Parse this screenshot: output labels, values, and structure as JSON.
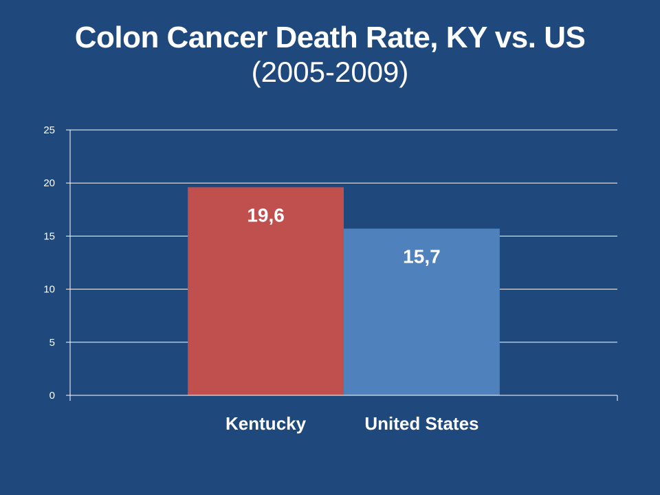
{
  "chart_data": {
    "type": "bar",
    "title": "Colon Cancer Death Rate, KY vs. US",
    "subtitle": "(2005-2009)",
    "categories": [
      "Kentucky",
      "United States"
    ],
    "values": [
      19.6,
      15.7
    ],
    "data_labels": [
      "19,6",
      "15,7"
    ],
    "bar_colors": [
      "#C0504D",
      "#4F81BD"
    ],
    "ylim": [
      0,
      25
    ],
    "yticks": [
      0,
      5,
      10,
      15,
      20,
      25
    ],
    "xlabel": "",
    "ylabel": "",
    "grid": true,
    "legend": "none"
  },
  "colors": {
    "background": "#1F497D",
    "gridline": "#ffffff",
    "text": "#ffffff"
  }
}
